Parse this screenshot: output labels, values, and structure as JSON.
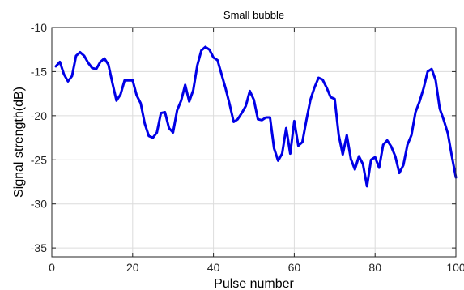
{
  "chart_data": {
    "type": "line",
    "title": "Small bubble",
    "xlabel": "Pulse number",
    "ylabel": "Signal strength(dB)",
    "xlim": [
      0,
      100
    ],
    "ylim": [
      -36,
      -10
    ],
    "xticks": [
      0,
      20,
      40,
      60,
      80,
      100
    ],
    "yticks": [
      -10,
      -15,
      -20,
      -25,
      -30,
      -35
    ],
    "x_tick_labels": [
      "0",
      "20",
      "40",
      "60",
      "80",
      "100"
    ],
    "y_tick_labels": [
      "-10",
      "-15",
      "-20",
      "-25",
      "-30",
      "-35"
    ],
    "grid": true,
    "series": [
      {
        "color": "#0000e6",
        "x": [
          1,
          2,
          3,
          4,
          5,
          6,
          7,
          8,
          9,
          10,
          11,
          12,
          13,
          14,
          15,
          16,
          17,
          18,
          19,
          20,
          21,
          22,
          23,
          24,
          25,
          26,
          27,
          28,
          29,
          30,
          31,
          32,
          33,
          34,
          35,
          36,
          37,
          38,
          39,
          40,
          41,
          42,
          43,
          44,
          45,
          46,
          47,
          48,
          49,
          50,
          51,
          52,
          53,
          54,
          55,
          56,
          57,
          58,
          59,
          60,
          61,
          62,
          63,
          64,
          65,
          66,
          67,
          68,
          69,
          70,
          71,
          72,
          73,
          74,
          75,
          76,
          77,
          78,
          79,
          80,
          81,
          82,
          83,
          84,
          85,
          86,
          87,
          88,
          89,
          90,
          91,
          92,
          93,
          94,
          95,
          96,
          97,
          98,
          99,
          100
        ],
        "y": [
          -14.4,
          -13.9,
          -15.3,
          -16.1,
          -15.5,
          -13.2,
          -12.8,
          -13.2,
          -14.0,
          -14.6,
          -14.7,
          -13.9,
          -13.5,
          -14.2,
          -16.3,
          -18.3,
          -17.6,
          -16.0,
          -16.0,
          -16.0,
          -17.7,
          -18.6,
          -20.9,
          -22.3,
          -22.5,
          -21.9,
          -19.7,
          -19.6,
          -21.4,
          -21.9,
          -19.4,
          -18.3,
          -16.5,
          -18.4,
          -17.1,
          -14.3,
          -12.6,
          -12.2,
          -12.5,
          -13.4,
          -13.7,
          -15.3,
          -16.9,
          -18.7,
          -20.7,
          -20.4,
          -19.7,
          -18.9,
          -17.2,
          -18.2,
          -20.4,
          -20.5,
          -20.2,
          -20.2,
          -23.7,
          -25.1,
          -24.3,
          -21.4,
          -24.3,
          -20.6,
          -23.4,
          -23.0,
          -20.5,
          -18.2,
          -16.8,
          -15.7,
          -15.9,
          -16.8,
          -17.9,
          -18.1,
          -22.2,
          -24.4,
          -22.2,
          -24.9,
          -26.1,
          -24.6,
          -25.5,
          -28.0,
          -25.0,
          -24.7,
          -25.9,
          -23.3,
          -22.8,
          -23.5,
          -24.6,
          -26.5,
          -25.6,
          -23.3,
          -22.2,
          -19.6,
          -18.4,
          -16.9,
          -15.0,
          -14.7,
          -16.0,
          -19.2,
          -20.5,
          -22.0,
          -24.6,
          -27.0
        ]
      }
    ]
  }
}
